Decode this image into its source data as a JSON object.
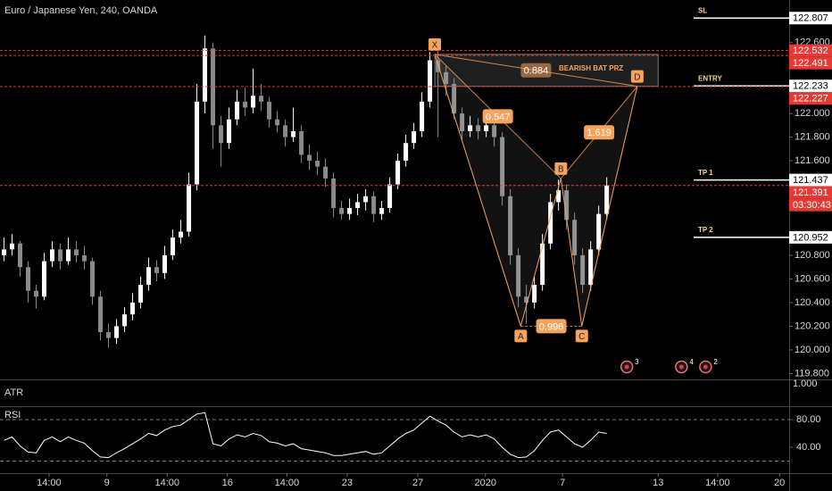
{
  "chart_data": {
    "type": "candlestick",
    "title": "Euro / Japanese Yen, 240, OANDA",
    "up_color": "#ffffff",
    "down_color": "#8a8a8a",
    "candles": [
      [
        120.8,
        120.95,
        120.75,
        120.85
      ],
      [
        120.85,
        120.98,
        120.8,
        120.9
      ],
      [
        120.9,
        120.92,
        120.62,
        120.7
      ],
      [
        120.7,
        120.75,
        120.4,
        120.5
      ],
      [
        120.5,
        120.55,
        120.35,
        120.45
      ],
      [
        120.45,
        120.82,
        120.42,
        120.75
      ],
      [
        120.75,
        120.92,
        120.7,
        120.85
      ],
      [
        120.85,
        120.9,
        120.68,
        120.75
      ],
      [
        120.75,
        120.95,
        120.72,
        120.85
      ],
      [
        120.85,
        120.92,
        120.74,
        120.8
      ],
      [
        120.8,
        120.88,
        120.68,
        120.75
      ],
      [
        120.75,
        120.78,
        120.38,
        120.45
      ],
      [
        120.45,
        120.5,
        120.08,
        120.15
      ],
      [
        120.15,
        120.22,
        120.02,
        120.1
      ],
      [
        120.1,
        120.26,
        120.05,
        120.2
      ],
      [
        120.2,
        120.36,
        120.15,
        120.3
      ],
      [
        120.3,
        120.48,
        120.25,
        120.4
      ],
      [
        120.4,
        120.62,
        120.35,
        120.55
      ],
      [
        120.55,
        120.78,
        120.5,
        120.7
      ],
      [
        120.7,
        120.76,
        120.58,
        120.65
      ],
      [
        120.65,
        120.88,
        120.6,
        120.8
      ],
      [
        120.8,
        121.02,
        120.76,
        120.95
      ],
      [
        120.95,
        121.1,
        120.9,
        121.0
      ],
      [
        121.0,
        121.5,
        120.96,
        121.4
      ],
      [
        121.4,
        122.25,
        121.35,
        122.1
      ],
      [
        122.1,
        122.66,
        122.0,
        122.55
      ],
      [
        122.55,
        122.6,
        121.7,
        121.9
      ],
      [
        121.9,
        121.98,
        121.55,
        121.75
      ],
      [
        121.75,
        122.05,
        121.7,
        121.95
      ],
      [
        121.95,
        122.2,
        121.9,
        122.1
      ],
      [
        122.1,
        122.22,
        121.98,
        122.05
      ],
      [
        122.05,
        122.38,
        122.0,
        122.15
      ],
      [
        122.15,
        122.25,
        122.02,
        122.1
      ],
      [
        122.1,
        122.14,
        121.88,
        121.95
      ],
      [
        121.95,
        122.02,
        121.84,
        121.9
      ],
      [
        121.9,
        121.95,
        121.72,
        121.8
      ],
      [
        121.8,
        122.05,
        121.76,
        121.85
      ],
      [
        121.85,
        121.9,
        121.58,
        121.65
      ],
      [
        121.65,
        121.74,
        121.52,
        121.6
      ],
      [
        121.6,
        121.68,
        121.48,
        121.55
      ],
      [
        121.55,
        121.62,
        121.38,
        121.45
      ],
      [
        121.45,
        121.5,
        121.12,
        121.2
      ],
      [
        121.2,
        121.26,
        121.1,
        121.15
      ],
      [
        121.15,
        121.28,
        121.1,
        121.2
      ],
      [
        121.2,
        121.32,
        121.14,
        121.25
      ],
      [
        121.25,
        121.36,
        121.18,
        121.3
      ],
      [
        121.3,
        121.34,
        121.08,
        121.15
      ],
      [
        121.15,
        121.26,
        121.1,
        121.2
      ],
      [
        121.2,
        121.46,
        121.16,
        121.4
      ],
      [
        121.4,
        121.66,
        121.36,
        121.6
      ],
      [
        121.6,
        121.82,
        121.55,
        121.75
      ],
      [
        121.75,
        121.92,
        121.7,
        121.85
      ],
      [
        121.85,
        122.18,
        121.8,
        122.1
      ],
      [
        122.1,
        122.52,
        122.05,
        122.45
      ],
      [
        122.45,
        122.55,
        121.8,
        122.35
      ],
      [
        122.35,
        122.4,
        122.15,
        122.25
      ],
      [
        122.25,
        122.3,
        121.95,
        122.0
      ],
      [
        122.0,
        122.05,
        121.78,
        121.85
      ],
      [
        121.85,
        121.98,
        121.8,
        121.9
      ],
      [
        121.9,
        121.96,
        121.78,
        121.85
      ],
      [
        121.85,
        121.98,
        121.8,
        121.9
      ],
      [
        121.9,
        121.95,
        121.72,
        121.8
      ],
      [
        121.8,
        121.84,
        121.22,
        121.3
      ],
      [
        121.3,
        121.36,
        120.72,
        120.8
      ],
      [
        120.8,
        120.86,
        120.36,
        120.45
      ],
      [
        120.45,
        120.55,
        120.22,
        120.4
      ],
      [
        120.4,
        120.62,
        120.35,
        120.55
      ],
      [
        120.55,
        120.98,
        120.5,
        120.9
      ],
      [
        120.9,
        121.32,
        120.85,
        121.25
      ],
      [
        121.25,
        121.44,
        121.18,
        121.35
      ],
      [
        121.35,
        121.4,
        121.02,
        121.1
      ],
      [
        121.1,
        121.16,
        120.72,
        120.8
      ],
      [
        120.8,
        120.86,
        120.48,
        120.55
      ],
      [
        120.55,
        120.92,
        120.5,
        120.85
      ],
      [
        120.85,
        121.22,
        120.8,
        121.15
      ],
      [
        121.15,
        121.46,
        121.1,
        121.39
      ]
    ],
    "xlim": [
      -0.5,
      97.7
    ],
    "xticks": [
      {
        "value": 5.6,
        "label": "14:00"
      },
      {
        "value": 12.8,
        "label": "9"
      },
      {
        "value": 20.3,
        "label": "14:00"
      },
      {
        "value": 27.8,
        "label": "16"
      },
      {
        "value": 35.2,
        "label": "14:00"
      },
      {
        "value": 42.7,
        "label": "23"
      },
      {
        "value": 51.5,
        "label": "27"
      },
      {
        "value": 59.9,
        "label": "2020"
      },
      {
        "value": 69.5,
        "label": "7"
      },
      {
        "value": 81.4,
        "label": "13"
      },
      {
        "value": 88.8,
        "label": "14:00"
      },
      {
        "value": 96.5,
        "label": "20"
      }
    ],
    "ylim": [
      119.75,
      122.96
    ],
    "yticks": [
      {
        "value": 122.6,
        "label": "122.600"
      },
      {
        "value": 122.0,
        "label": "122.000"
      },
      {
        "value": 121.8,
        "label": "121.800"
      },
      {
        "value": 121.6,
        "label": "121.600"
      },
      {
        "value": 120.8,
        "label": "120.800"
      },
      {
        "value": 120.6,
        "label": "120.600"
      },
      {
        "value": 120.4,
        "label": "120.400"
      },
      {
        "value": 120.2,
        "label": "120.200"
      },
      {
        "value": 120.0,
        "label": "120.000"
      },
      {
        "value": 119.8,
        "label": "119.800"
      }
    ],
    "grid": false,
    "levels": [
      {
        "name": "SL",
        "value": 122.807,
        "style": "target"
      },
      {
        "value": 122.532,
        "style": "alert"
      },
      {
        "value": 122.491,
        "style": "alert"
      },
      {
        "name": "ENTRY",
        "value": 122.233,
        "style": "target"
      },
      {
        "value": 122.227,
        "style": "alert"
      },
      {
        "name": "TP 1",
        "value": 121.437,
        "style": "target"
      },
      {
        "value": 121.391,
        "style": "alert",
        "countdown": "03:30:43"
      },
      {
        "name": "TP 2",
        "value": 120.952,
        "style": "target"
      }
    ],
    "pattern": {
      "color": "#f7a35c",
      "points": [
        {
          "label": "X",
          "x": 53.6,
          "y": 122.5
        },
        {
          "label": "A",
          "x": 64.3,
          "y": 120.2
        },
        {
          "label": "B",
          "x": 69.3,
          "y": 121.45
        },
        {
          "label": "C",
          "x": 71.9,
          "y": 120.2
        },
        {
          "label": "D",
          "x": 78.8,
          "y": 122.23
        }
      ],
      "ratios": [
        {
          "value": 0.547,
          "between": [
            "X",
            "B"
          ]
        },
        {
          "value": 0.996,
          "between": [
            "A",
            "C"
          ]
        },
        {
          "value": 1.619,
          "between": [
            "B",
            "D"
          ]
        },
        {
          "value": 0.884,
          "between": [
            "X",
            "D"
          ]
        }
      ],
      "prz": {
        "label": "BEARISH BAT PRZ",
        "x": [
          53.6,
          81.4
        ],
        "y": [
          122.23,
          122.5
        ]
      }
    },
    "events": [
      {
        "x": 77.5,
        "count": 3
      },
      {
        "x": 84.3,
        "count": 4
      },
      {
        "x": 87.3,
        "count": 2
      }
    ],
    "atr": {
      "label": "ATR",
      "tick": {
        "value": 1,
        "label": "1.000"
      }
    },
    "rsi": {
      "label": "RSI",
      "color": "#ffffff",
      "ylim": [
        2.6,
        99.4
      ],
      "yticks": [
        {
          "value": 80,
          "label": "80.00"
        },
        {
          "value": 40,
          "label": "40.00"
        }
      ],
      "bands": [
        80,
        20
      ],
      "values": [
        50,
        55,
        42,
        33,
        32,
        50,
        55,
        48,
        55,
        50,
        46,
        35,
        26,
        25,
        32,
        38,
        45,
        52,
        60,
        57,
        65,
        70,
        72,
        80,
        88,
        90,
        45,
        42,
        52,
        58,
        55,
        60,
        57,
        48,
        46,
        42,
        45,
        38,
        36,
        34,
        32,
        28,
        28,
        30,
        32,
        34,
        30,
        32,
        42,
        52,
        60,
        65,
        75,
        85,
        78,
        72,
        62,
        55,
        58,
        55,
        58,
        52,
        40,
        30,
        25,
        26,
        35,
        50,
        62,
        65,
        55,
        45,
        40,
        50,
        62,
        60
      ]
    }
  }
}
